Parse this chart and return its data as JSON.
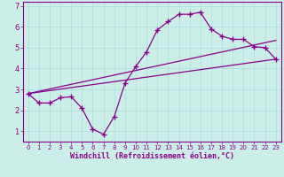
{
  "bg_color": "#cceee8",
  "line_color": "#8b008b",
  "grid_color": "#aaddd8",
  "xlabel": "Windchill (Refroidissement éolien,°C)",
  "xlim": [
    -0.5,
    23.5
  ],
  "ylim": [
    0.5,
    7.2
  ],
  "xticks": [
    0,
    1,
    2,
    3,
    4,
    5,
    6,
    7,
    8,
    9,
    10,
    11,
    12,
    13,
    14,
    15,
    16,
    17,
    18,
    19,
    20,
    21,
    22,
    23
  ],
  "yticks": [
    1,
    2,
    3,
    4,
    5,
    6,
    7
  ],
  "curve1_x": [
    0,
    1,
    2,
    3,
    4,
    5,
    6,
    7,
    8,
    9,
    10,
    11,
    12,
    13,
    14,
    15,
    16,
    17,
    18,
    19,
    20,
    21,
    22,
    23
  ],
  "curve1_y": [
    2.8,
    2.35,
    2.35,
    2.6,
    2.65,
    2.1,
    1.1,
    0.85,
    1.7,
    3.3,
    4.1,
    4.8,
    5.85,
    6.25,
    6.6,
    6.6,
    6.7,
    5.9,
    5.55,
    5.4,
    5.4,
    5.05,
    5.0,
    4.45
  ],
  "curve2_x": [
    0,
    23
  ],
  "curve2_y": [
    2.8,
    4.45
  ],
  "curve3_x": [
    0,
    23
  ],
  "curve3_y": [
    2.8,
    5.35
  ],
  "marker": "+",
  "markersize": 4,
  "linewidth": 0.9
}
